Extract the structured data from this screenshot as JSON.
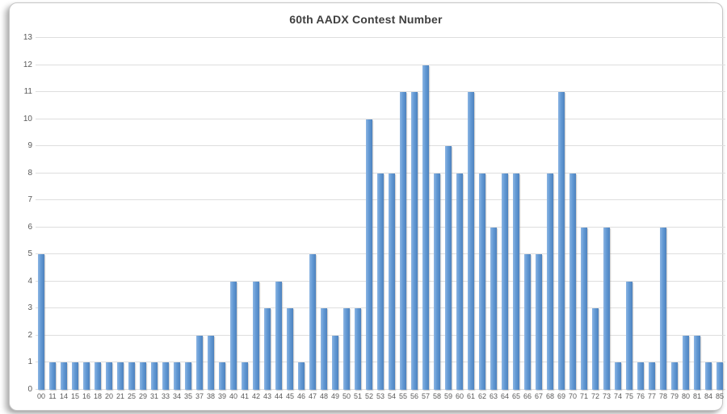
{
  "chart_data": {
    "type": "bar",
    "title": "60th AADX Contest Number",
    "xlabel": "",
    "ylabel": "",
    "ylim": [
      0,
      13
    ],
    "ytick_step": 1,
    "grid": "horizontal",
    "legend": "none",
    "categories": [
      "00",
      "11",
      "14",
      "15",
      "16",
      "18",
      "20",
      "21",
      "25",
      "29",
      "31",
      "33",
      "34",
      "35",
      "37",
      "38",
      "39",
      "40",
      "41",
      "42",
      "43",
      "44",
      "45",
      "46",
      "47",
      "48",
      "49",
      "50",
      "51",
      "52",
      "53",
      "54",
      "55",
      "56",
      "57",
      "58",
      "59",
      "60",
      "61",
      "62",
      "63",
      "64",
      "65",
      "66",
      "67",
      "68",
      "69",
      "70",
      "71",
      "72",
      "73",
      "74",
      "75",
      "76",
      "77",
      "78",
      "79",
      "80",
      "81",
      "84",
      "85"
    ],
    "values": [
      5,
      1,
      1,
      1,
      1,
      1,
      1,
      1,
      1,
      1,
      1,
      1,
      1,
      1,
      2,
      2,
      1,
      4,
      1,
      4,
      3,
      4,
      3,
      1,
      5,
      3,
      2,
      3,
      3,
      10,
      8,
      8,
      11,
      11,
      12,
      8,
      9,
      8,
      11,
      8,
      6,
      8,
      8,
      5,
      5,
      8,
      11,
      8,
      6,
      3,
      6,
      1,
      4,
      1,
      1,
      6,
      1,
      2,
      2,
      1,
      1
    ],
    "colors": {
      "bar_light": "#8CB5E3",
      "bar_mid": "#639AD5",
      "bar_dark": "#4E82BE",
      "gridline": "#DEDEDE",
      "tick_label": "#595959",
      "title": "#3F3F3F",
      "card_border": "#C6C6C6",
      "background": "#FFFFFF"
    }
  }
}
